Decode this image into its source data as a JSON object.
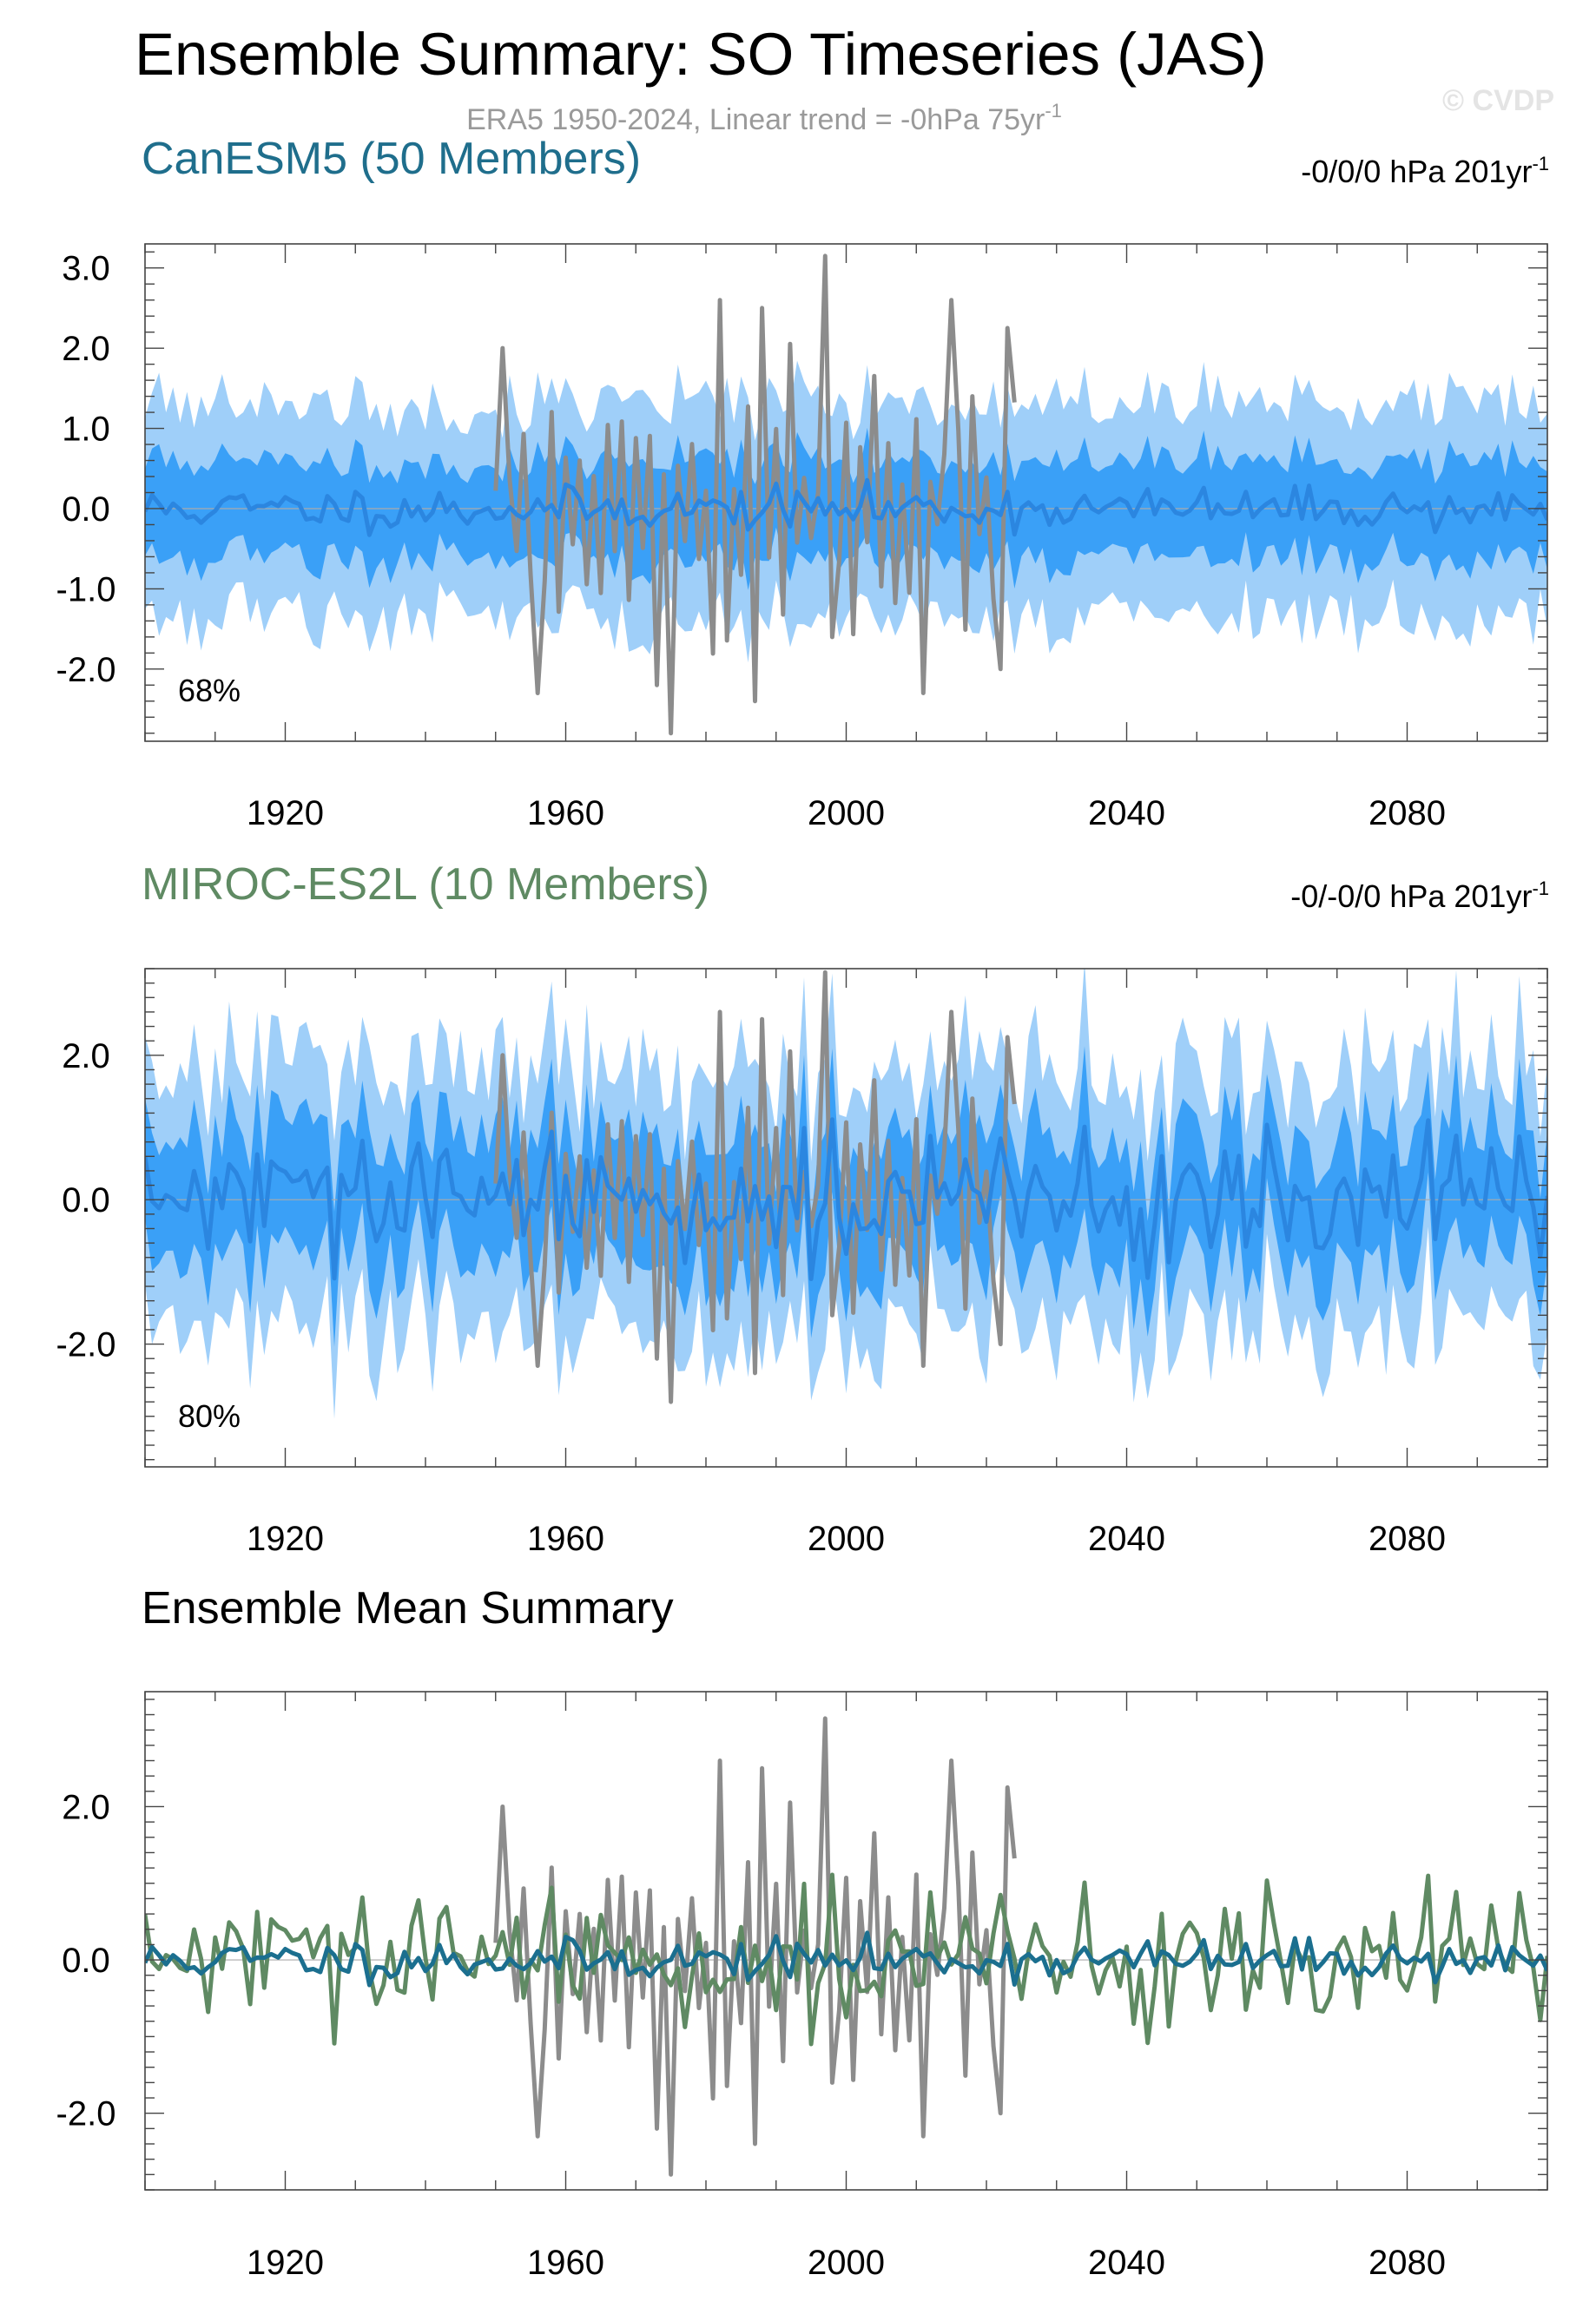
{
  "figure": {
    "title": "Ensemble Summary: SO Timeseries (JAS)",
    "subtitle": "ERA5 1950-2024, Linear trend = -0hPa 75yr",
    "subtitle_sup": "-1",
    "watermark": "© CVDP"
  },
  "colors": {
    "outer_band": "#9fcff9",
    "inner_band": "#3aa0f7",
    "ens_mean_line": "#2b86e0",
    "obs_line": "#8c8c8c",
    "canesm5_title": "#1f6e8c",
    "miroc_title": "#5f8a63",
    "canesm5_mean": "#1b6f8f",
    "miroc_mean": "#5f8a63",
    "zero_line": "#aaaaaa"
  },
  "chart_data": [
    {
      "type": "area",
      "title": "CanESM5 (50 Members)",
      "trend_label": "-0/0/0 hPa 201yr",
      "trend_sup": "-1",
      "percent_label": "68%",
      "xlim": [
        1900,
        2100
      ],
      "ylim": [
        -2.9,
        3.3
      ],
      "xticks": [
        1920,
        1960,
        2000,
        2040,
        2080
      ],
      "xtick_labels": [
        "1920",
        "1960",
        "2000",
        "2040",
        "2080"
      ],
      "yticks": [
        3.0,
        2.0,
        1.0,
        0.0,
        -1.0,
        -2.0
      ],
      "ytick_labels": [
        "3.0",
        "2.0",
        "1.0",
        "0.0",
        "-1.0",
        "-2.0"
      ],
      "inner_spread": 0.6,
      "outer_spread": 1.32,
      "series": [
        {
          "role": "ensemble_mean",
          "x_start": 1900,
          "x_end": 2100
        },
        {
          "role": "observations",
          "x_start": 1950,
          "x_end": 2024
        }
      ],
      "grid": false
    },
    {
      "type": "area",
      "title": "MIROC-ES2L (10 Members)",
      "trend_label": "-0/-0/0 hPa 201yr",
      "trend_sup": "-1",
      "percent_label": "80%",
      "xlim": [
        1900,
        2100
      ],
      "ylim": [
        -3.7,
        3.2
      ],
      "xticks": [
        1920,
        1960,
        2000,
        2040,
        2080
      ],
      "xtick_labels": [
        "1920",
        "1960",
        "2000",
        "2040",
        "2080"
      ],
      "yticks": [
        2.0,
        0.0,
        -2.0
      ],
      "ytick_labels": [
        "2.0",
        "0.0",
        "-2.0"
      ],
      "inner_spread": 0.9,
      "outer_spread": 1.85,
      "series": [
        {
          "role": "ensemble_mean",
          "x_start": 1900,
          "x_end": 2100
        },
        {
          "role": "observations",
          "x_start": 1950,
          "x_end": 2024
        }
      ],
      "grid": false
    },
    {
      "type": "line",
      "title": "Ensemble Mean Summary",
      "xlim": [
        1900,
        2100
      ],
      "ylim": [
        -3.0,
        3.5
      ],
      "xticks": [
        1920,
        1960,
        2000,
        2040,
        2080
      ],
      "xtick_labels": [
        "1920",
        "1960",
        "2000",
        "2040",
        "2080"
      ],
      "yticks": [
        2.0,
        0.0,
        -2.0
      ],
      "ytick_labels": [
        "2.0",
        "0.0",
        "-2.0"
      ],
      "series": [
        {
          "role": "observations",
          "x_start": 1950,
          "x_end": 2024
        },
        {
          "role": "miroc_mean",
          "x_start": 1900,
          "x_end": 2100
        },
        {
          "role": "canesm5_mean",
          "x_start": 1900,
          "x_end": 2100
        }
      ],
      "grid": false
    }
  ]
}
